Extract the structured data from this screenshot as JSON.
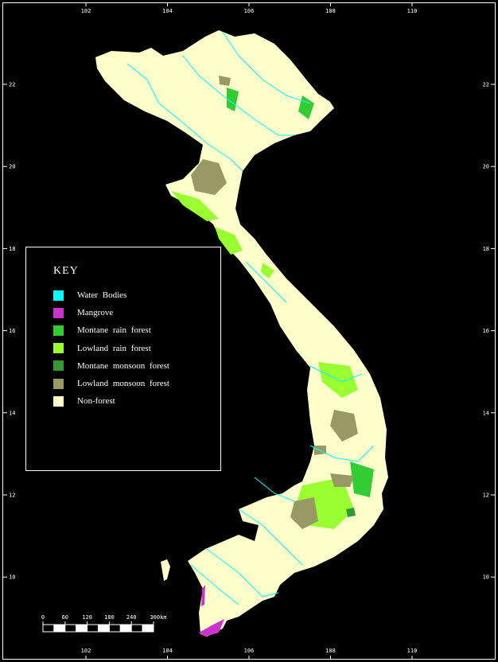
{
  "map": {
    "axis_ticks": {
      "longitude": [
        "102",
        "104",
        "106",
        "108",
        "110"
      ],
      "latitude": [
        "22",
        "20",
        "18",
        "16",
        "14",
        "12",
        "10"
      ]
    },
    "colors": {
      "background": "#000000",
      "frame": "#ffffff",
      "non_forest": "#ffffcc",
      "water": "#00ffff",
      "mangrove": "#cc33cc",
      "montane_rain": "#33cc33",
      "lowland_rain": "#99ff33",
      "montane_monsoon": "#339933",
      "lowland_monsoon": "#999966"
    }
  },
  "key": {
    "title": "KEY",
    "items": [
      {
        "label": "Water Bodies",
        "color": "#00ffff"
      },
      {
        "label": "Mangrove",
        "color": "#cc33cc"
      },
      {
        "label": "Montane rain forest",
        "color": "#33cc33"
      },
      {
        "label": "Lowland rain forest",
        "color": "#99ff33"
      },
      {
        "label": "Montane monsoon forest",
        "color": "#339933"
      },
      {
        "label": "Lowland monsoon forest",
        "color": "#999966"
      },
      {
        "label": "Non-forest",
        "color": "#ffffcc"
      }
    ]
  },
  "scale_bar": {
    "labels": [
      "0",
      "60",
      "120",
      "180",
      "240",
      "300km"
    ]
  }
}
